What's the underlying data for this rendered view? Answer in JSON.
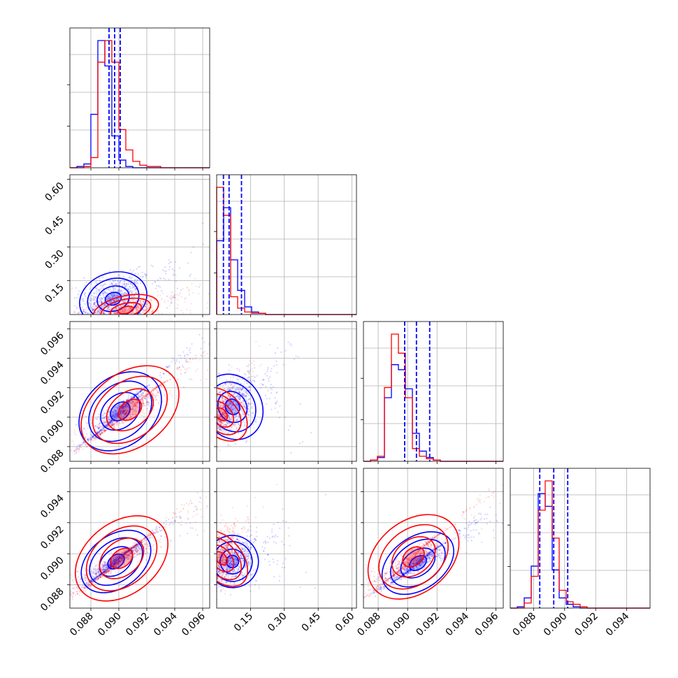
{
  "chart_data": {
    "type": "corner",
    "title": "",
    "colors": {
      "series_a": "#0000ff",
      "series_b": "#ff0000",
      "grid": "#b0b0b0"
    },
    "series": [
      {
        "name": "",
        "color": "#0000ff"
      },
      {
        "name": "",
        "color": "#ff0000"
      }
    ],
    "grid": true,
    "parameters": [
      {
        "range": [
          0.0865,
          0.0965
        ],
        "ticks": [
          "0.088",
          "0.090",
          "0.092",
          "0.094",
          "0.096"
        ],
        "tick_values": [
          0.088,
          0.09,
          0.092,
          0.094,
          0.096
        ],
        "quantiles_a": [
          0.0893,
          0.0897,
          0.0901
        ]
      },
      {
        "range": [
          0.0,
          0.62
        ],
        "ticks": [
          "0.15",
          "0.30",
          "0.45",
          "0.60"
        ],
        "tick_values": [
          0.15,
          0.3,
          0.45,
          0.6
        ],
        "quantiles_a": [
          0.03,
          0.055,
          0.11
        ]
      },
      {
        "range": [
          0.087,
          0.0965
        ],
        "ticks": [
          "0.088",
          "0.090",
          "0.092",
          "0.094",
          "0.096"
        ],
        "tick_values": [
          0.088,
          0.09,
          0.092,
          0.094,
          0.096
        ],
        "quantiles_a": [
          0.0898,
          0.0906,
          0.0915
        ]
      },
      {
        "range": [
          0.0865,
          0.0955
        ],
        "ticks": [
          "0.088",
          "0.090",
          "0.092",
          "0.094"
        ],
        "tick_values": [
          0.088,
          0.09,
          0.092,
          0.094
        ],
        "quantiles_a": [
          0.0884,
          0.0893,
          0.0902
        ]
      }
    ],
    "histograms": [
      {
        "a": [
          0,
          0.01,
          0.03,
          0.42,
          1.0,
          0.8,
          0.25,
          0.06,
          0.01,
          0.0,
          0.0,
          0.0,
          0.0,
          0.0,
          0.0,
          0.0,
          0.0,
          0.0,
          0.0,
          0.0
        ],
        "b": [
          0,
          0,
          0.01,
          0.08,
          0.83,
          1.0,
          0.83,
          0.3,
          0.14,
          0.05,
          0.02,
          0.01,
          0.01,
          0.0,
          0.0,
          0.0,
          0.0,
          0.0,
          0.0,
          0.0
        ]
      },
      {
        "a": [
          0.58,
          0.84,
          0.43,
          0.19,
          0.06,
          0.02,
          0.01,
          0.0,
          0.0,
          0.0,
          0.0,
          0.0,
          0.0,
          0.0,
          0.0,
          0.0,
          0.0,
          0.0,
          0.0,
          0.0
        ],
        "b": [
          1.0,
          0.78,
          0.14,
          0.05,
          0.02,
          0.01,
          0.01,
          0.0,
          0.0,
          0.0,
          0.0,
          0.0,
          0.0,
          0.0,
          0.0,
          0.0,
          0.0,
          0.0,
          0.0,
          0.0
        ]
      },
      {
        "a": [
          0.0,
          0.01,
          0.03,
          0.5,
          0.76,
          0.72,
          0.57,
          0.22,
          0.08,
          0.03,
          0.01,
          0.0,
          0.0,
          0.0,
          0.0,
          0.0,
          0.0,
          0.0,
          0.0,
          0.0
        ],
        "b": [
          0.0,
          0.01,
          0.04,
          0.58,
          1.0,
          0.85,
          0.5,
          0.1,
          0.04,
          0.02,
          0.01,
          0.0,
          0.0,
          0.0,
          0.0,
          0.0,
          0.0,
          0.0,
          0.0,
          0.0
        ]
      },
      {
        "a": [
          0.0,
          0.01,
          0.08,
          0.33,
          0.9,
          0.8,
          0.3,
          0.08,
          0.03,
          0.01,
          0.0,
          0.0,
          0.0,
          0.0,
          0.0,
          0.0,
          0.0,
          0.0,
          0.0,
          0.0
        ],
        "b": [
          0.0,
          0.0,
          0.04,
          0.25,
          0.77,
          1.0,
          0.55,
          0.14,
          0.05,
          0.03,
          0.01,
          0.0,
          0.0,
          0.0,
          0.0,
          0.0,
          0.0,
          0.0,
          0.0,
          0.0
        ]
      }
    ],
    "pairs": [
      {
        "row": 1,
        "col": 0,
        "a": {
          "cx": 0.0896,
          "cy": 0.07,
          "sx": 0.0011,
          "sy": 0.055,
          "rho": 0.45
        },
        "b": {
          "cx": 0.0905,
          "cy": 0.02,
          "sx": 0.0011,
          "sy": 0.03,
          "rho": 0.55
        }
      },
      {
        "row": 2,
        "col": 0,
        "a": {
          "cx": 0.0901,
          "cy": 0.0904,
          "sx": 0.0011,
          "sy": 0.0011,
          "rho": 0.96
        },
        "b": {
          "cx": 0.0908,
          "cy": 0.0905,
          "sx": 0.0014,
          "sy": 0.0012,
          "rho": 0.96
        }
      },
      {
        "row": 2,
        "col": 1,
        "a": {
          "cx": 0.07,
          "cy": 0.0907,
          "sx": 0.05,
          "sy": 0.0011,
          "rho": 0.5
        },
        "b": {
          "cx": 0.02,
          "cy": 0.0902,
          "sx": 0.03,
          "sy": 0.001,
          "rho": 0.5
        }
      },
      {
        "row": 3,
        "col": 0,
        "a": {
          "cx": 0.0898,
          "cy": 0.0895,
          "sx": 0.001,
          "sy": 0.0008,
          "rho": 0.97
        },
        "b": {
          "cx": 0.0902,
          "cy": 0.0897,
          "sx": 0.0013,
          "sy": 0.0011,
          "rho": 0.97
        }
      },
      {
        "row": 3,
        "col": 1,
        "a": {
          "cx": 0.07,
          "cy": 0.0895,
          "sx": 0.05,
          "sy": 0.0008,
          "rho": 0.4
        },
        "b": {
          "cx": 0.02,
          "cy": 0.0897,
          "sx": 0.03,
          "sy": 0.001,
          "rho": 0.45
        }
      },
      {
        "row": 3,
        "col": 2,
        "a": {
          "cx": 0.0907,
          "cy": 0.0894,
          "sx": 0.001,
          "sy": 0.0008,
          "rho": 0.96
        },
        "b": {
          "cx": 0.0904,
          "cy": 0.0898,
          "sx": 0.0012,
          "sy": 0.0011,
          "rho": 0.96
        }
      }
    ]
  }
}
